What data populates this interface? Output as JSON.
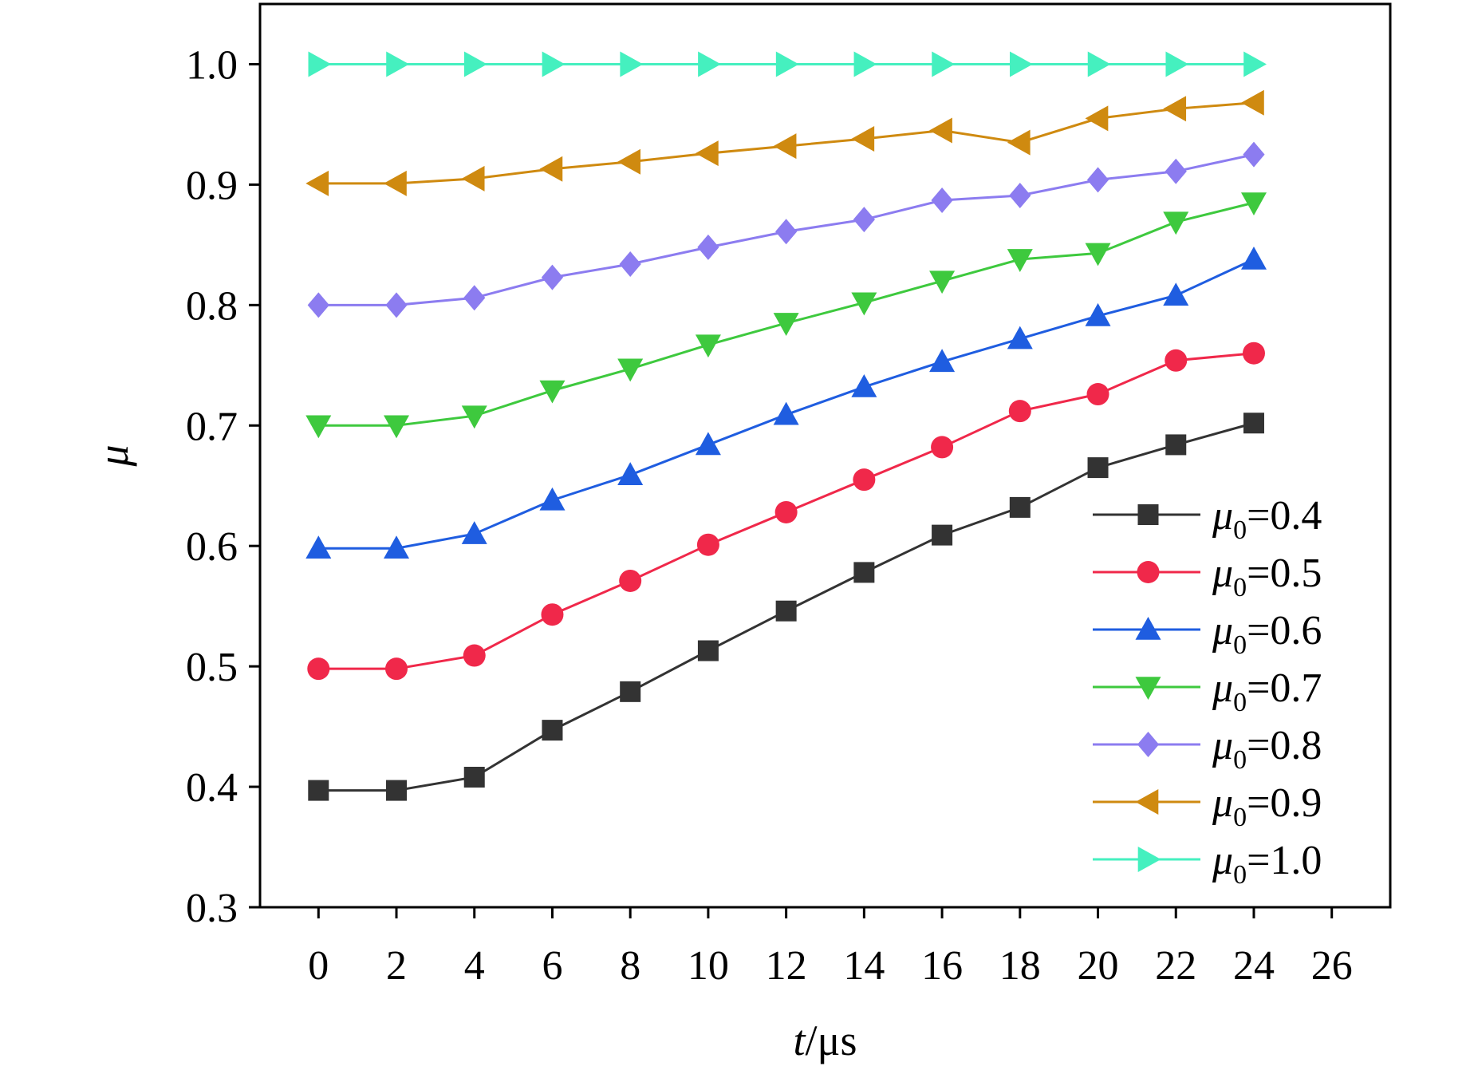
{
  "chart_data": {
    "type": "line",
    "xlabel": {
      "italic": "t",
      "rest": "/μs"
    },
    "ylabel": "μ",
    "xlim": [
      -1.5,
      27.5
    ],
    "ylim": [
      0.3,
      1.05
    ],
    "xticks": [
      "0",
      "2",
      "4",
      "6",
      "8",
      "10",
      "12",
      "14",
      "16",
      "18",
      "20",
      "22",
      "24",
      "26"
    ],
    "yticks": [
      "0.3",
      "0.4",
      "0.5",
      "0.6",
      "0.7",
      "0.8",
      "0.9",
      "1.0"
    ],
    "legend_position": "bottom-right",
    "x": [
      0,
      2,
      4,
      6,
      8,
      10,
      12,
      14,
      16,
      18,
      20,
      22,
      24
    ],
    "series": [
      {
        "name": "μ0=0.4",
        "label_prefix": "μ",
        "label_sub": "0",
        "label_suffix": "=0.4",
        "color": "#333333",
        "marker": "square",
        "values": [
          0.397,
          0.397,
          0.408,
          0.447,
          0.479,
          0.513,
          0.546,
          0.578,
          0.609,
          0.632,
          0.665,
          0.684,
          0.702
        ]
      },
      {
        "name": "μ0=0.5",
        "label_prefix": "μ",
        "label_sub": "0",
        "label_suffix": "=0.5",
        "color": "#f0284a",
        "marker": "circle",
        "values": [
          0.498,
          0.498,
          0.509,
          0.543,
          0.571,
          0.601,
          0.628,
          0.655,
          0.682,
          0.712,
          0.726,
          0.754,
          0.76
        ]
      },
      {
        "name": "μ0=0.6",
        "label_prefix": "μ",
        "label_sub": "0",
        "label_suffix": "=0.6",
        "color": "#1f5de0",
        "marker": "triangle-up",
        "values": [
          0.598,
          0.598,
          0.61,
          0.638,
          0.659,
          0.684,
          0.709,
          0.732,
          0.753,
          0.772,
          0.791,
          0.808,
          0.838
        ]
      },
      {
        "name": "μ0=0.7",
        "label_prefix": "μ",
        "label_sub": "0",
        "label_suffix": "=0.7",
        "color": "#3ec93e",
        "marker": "triangle-down",
        "values": [
          0.7,
          0.7,
          0.708,
          0.729,
          0.747,
          0.767,
          0.785,
          0.802,
          0.82,
          0.838,
          0.843,
          0.869,
          0.885
        ]
      },
      {
        "name": "μ0=0.8",
        "label_prefix": "μ",
        "label_sub": "0",
        "label_suffix": "=0.8",
        "color": "#8c7cf0",
        "marker": "diamond",
        "values": [
          0.8,
          0.8,
          0.806,
          0.823,
          0.834,
          0.848,
          0.861,
          0.871,
          0.887,
          0.891,
          0.904,
          0.911,
          0.925
        ]
      },
      {
        "name": "μ0=0.9",
        "label_prefix": "μ",
        "label_sub": "0",
        "label_suffix": "=0.9",
        "color": "#cf8a10",
        "marker": "triangle-left",
        "values": [
          0.901,
          0.901,
          0.905,
          0.913,
          0.919,
          0.926,
          0.932,
          0.938,
          0.945,
          0.935,
          0.955,
          0.963,
          0.968
        ]
      },
      {
        "name": "μ0=1.0",
        "label_prefix": "μ",
        "label_sub": "0",
        "label_suffix": "=1.0",
        "color": "#45f0bf",
        "marker": "triangle-right",
        "values": [
          1.0,
          1.0,
          1.0,
          1.0,
          1.0,
          1.0,
          1.0,
          1.0,
          1.0,
          1.0,
          1.0,
          1.0,
          1.0
        ]
      }
    ]
  }
}
